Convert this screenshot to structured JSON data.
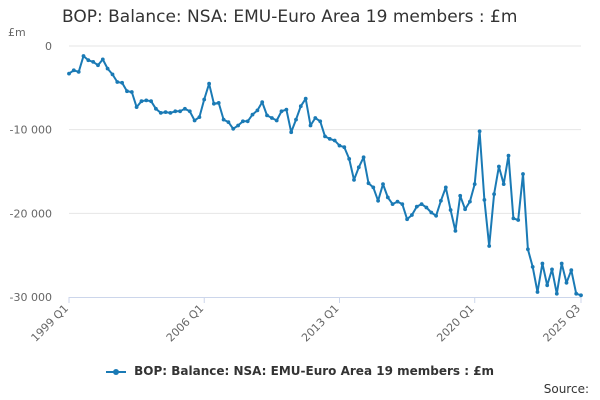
{
  "title": "BOP: Balance: NSA: EMU-Euro Area 19 members : £m",
  "unit_label": "£m",
  "source_label": "Source:",
  "colors": {
    "series": "#1a7ab5",
    "grid": "#e6e6e6",
    "axis": "#ccd6eb"
  },
  "chart_data": {
    "type": "line",
    "title": "BOP: Balance: NSA: EMU-Euro Area 19 members : £m",
    "ylabel": "£m",
    "xlabel": "",
    "ylim": [
      -30000,
      0
    ],
    "yticks": [
      0,
      -10000,
      -20000,
      -30000
    ],
    "ytick_labels": [
      "0",
      "-10 000",
      "-20 000",
      "-30 000"
    ],
    "xticks": [
      "1999 Q1",
      "2006 Q1",
      "2013 Q1",
      "2020 Q1",
      "2025 Q3"
    ],
    "grid": true,
    "legend": "bottom",
    "series": [
      {
        "name": "BOP: Balance: NSA: EMU-Euro Area 19 members : £m",
        "x": [
          "1999 Q1",
          "1999 Q2",
          "1999 Q3",
          "1999 Q4",
          "2000 Q1",
          "2000 Q2",
          "2000 Q3",
          "2000 Q4",
          "2001 Q1",
          "2001 Q2",
          "2001 Q3",
          "2001 Q4",
          "2002 Q1",
          "2002 Q2",
          "2002 Q3",
          "2002 Q4",
          "2003 Q1",
          "2003 Q2",
          "2003 Q3",
          "2003 Q4",
          "2004 Q1",
          "2004 Q2",
          "2004 Q3",
          "2004 Q4",
          "2005 Q1",
          "2005 Q2",
          "2005 Q3",
          "2005 Q4",
          "2006 Q1",
          "2006 Q2",
          "2006 Q3",
          "2006 Q4",
          "2007 Q1",
          "2007 Q2",
          "2007 Q3",
          "2007 Q4",
          "2008 Q1",
          "2008 Q2",
          "2008 Q3",
          "2008 Q4",
          "2009 Q1",
          "2009 Q2",
          "2009 Q3",
          "2009 Q4",
          "2010 Q1",
          "2010 Q2",
          "2010 Q3",
          "2010 Q4",
          "2011 Q1",
          "2011 Q2",
          "2011 Q3",
          "2011 Q4",
          "2012 Q1",
          "2012 Q2",
          "2012 Q3",
          "2012 Q4",
          "2013 Q1",
          "2013 Q2",
          "2013 Q3",
          "2013 Q4",
          "2014 Q1",
          "2014 Q2",
          "2014 Q3",
          "2014 Q4",
          "2015 Q1",
          "2015 Q2",
          "2015 Q3",
          "2015 Q4",
          "2016 Q1",
          "2016 Q2",
          "2016 Q3",
          "2016 Q4",
          "2017 Q1",
          "2017 Q2",
          "2017 Q3",
          "2017 Q4",
          "2018 Q1",
          "2018 Q2",
          "2018 Q3",
          "2018 Q4",
          "2019 Q1",
          "2019 Q2",
          "2019 Q3",
          "2019 Q4",
          "2020 Q1",
          "2020 Q2",
          "2020 Q3",
          "2020 Q4",
          "2021 Q1",
          "2021 Q2",
          "2021 Q3",
          "2021 Q4",
          "2022 Q1",
          "2022 Q2",
          "2022 Q3",
          "2022 Q4",
          "2023 Q1",
          "2023 Q2",
          "2023 Q3",
          "2023 Q4",
          "2024 Q1",
          "2024 Q2",
          "2024 Q3",
          "2024 Q4",
          "2025 Q1",
          "2025 Q2",
          "2025 Q3"
        ],
        "values": [
          -3300,
          -2900,
          -3100,
          -1200,
          -1700,
          -1900,
          -2300,
          -1600,
          -2700,
          -3400,
          -4300,
          -4400,
          -5400,
          -5500,
          -7300,
          -6600,
          -6500,
          -6600,
          -7500,
          -8000,
          -7900,
          -8000,
          -7800,
          -7800,
          -7500,
          -7800,
          -8900,
          -8500,
          -6400,
          -4500,
          -6900,
          -6800,
          -8800,
          -9100,
          -9900,
          -9500,
          -9000,
          -9000,
          -8200,
          -7700,
          -6700,
          -8300,
          -8600,
          -8900,
          -7800,
          -7600,
          -10300,
          -8800,
          -7200,
          -6300,
          -9500,
          -8600,
          -9000,
          -10800,
          -11100,
          -11300,
          -11900,
          -12100,
          -13500,
          -16000,
          -14500,
          -13300,
          -16400,
          -16900,
          -18500,
          -16500,
          -18100,
          -18900,
          -18600,
          -18900,
          -20700,
          -20200,
          -19200,
          -18900,
          -19300,
          -19900,
          -20300,
          -18500,
          -16900,
          -19600,
          -22100,
          -17900,
          -19500,
          -18600,
          -16500,
          -10200,
          -18400,
          -23900,
          -17700,
          -14400,
          -16500,
          -13100,
          -20600,
          -20800,
          -15300,
          -24300,
          -26400,
          -29400,
          -26000,
          -28600,
          -26700,
          -29600,
          -26000,
          -28300,
          -26800,
          -29600,
          -29800
        ]
      }
    ]
  }
}
